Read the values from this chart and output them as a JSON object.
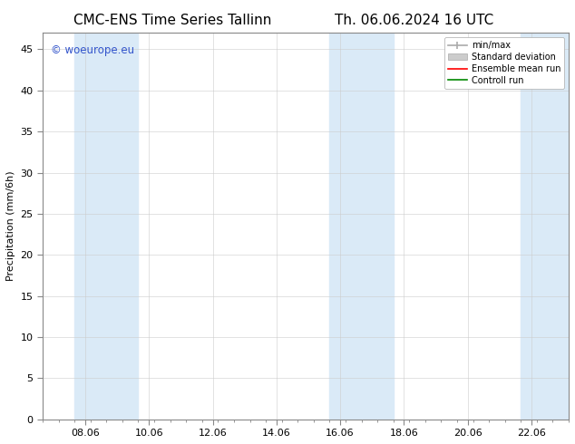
{
  "title_left": "CMC-ENS Time Series Tallinn",
  "title_right": "Th. 06.06.2024 16 UTC",
  "ylabel": "Precipitation (mm/6h)",
  "xlabel": "",
  "ylim": [
    0,
    47
  ],
  "yticks": [
    0,
    5,
    10,
    15,
    20,
    25,
    30,
    35,
    40,
    45
  ],
  "xtick_hours": [
    32,
    80,
    128,
    176,
    224,
    272,
    320,
    368
  ],
  "xtick_labels": [
    "08.06",
    "10.06",
    "12.06",
    "14.06",
    "16.06",
    "18.06",
    "20.06",
    "22.06"
  ],
  "xlim": [
    0,
    396
  ],
  "shaded_bands": [
    {
      "x_start": 24,
      "x_end": 72
    },
    {
      "x_start": 216,
      "x_end": 264
    },
    {
      "x_start": 360,
      "x_end": 396
    }
  ],
  "shaded_color": "#daeaf7",
  "watermark_text": "© woeurope.eu",
  "watermark_color": "#3355cc",
  "background_color": "#ffffff",
  "plot_bg_color": "#ffffff",
  "title_fontsize": 11,
  "axis_fontsize": 8,
  "tick_fontsize": 8,
  "legend_fontsize": 7,
  "minmax_color": "#aaaaaa",
  "std_color": "#cccccc",
  "ensemble_color": "#ff0000",
  "control_color": "#008800"
}
